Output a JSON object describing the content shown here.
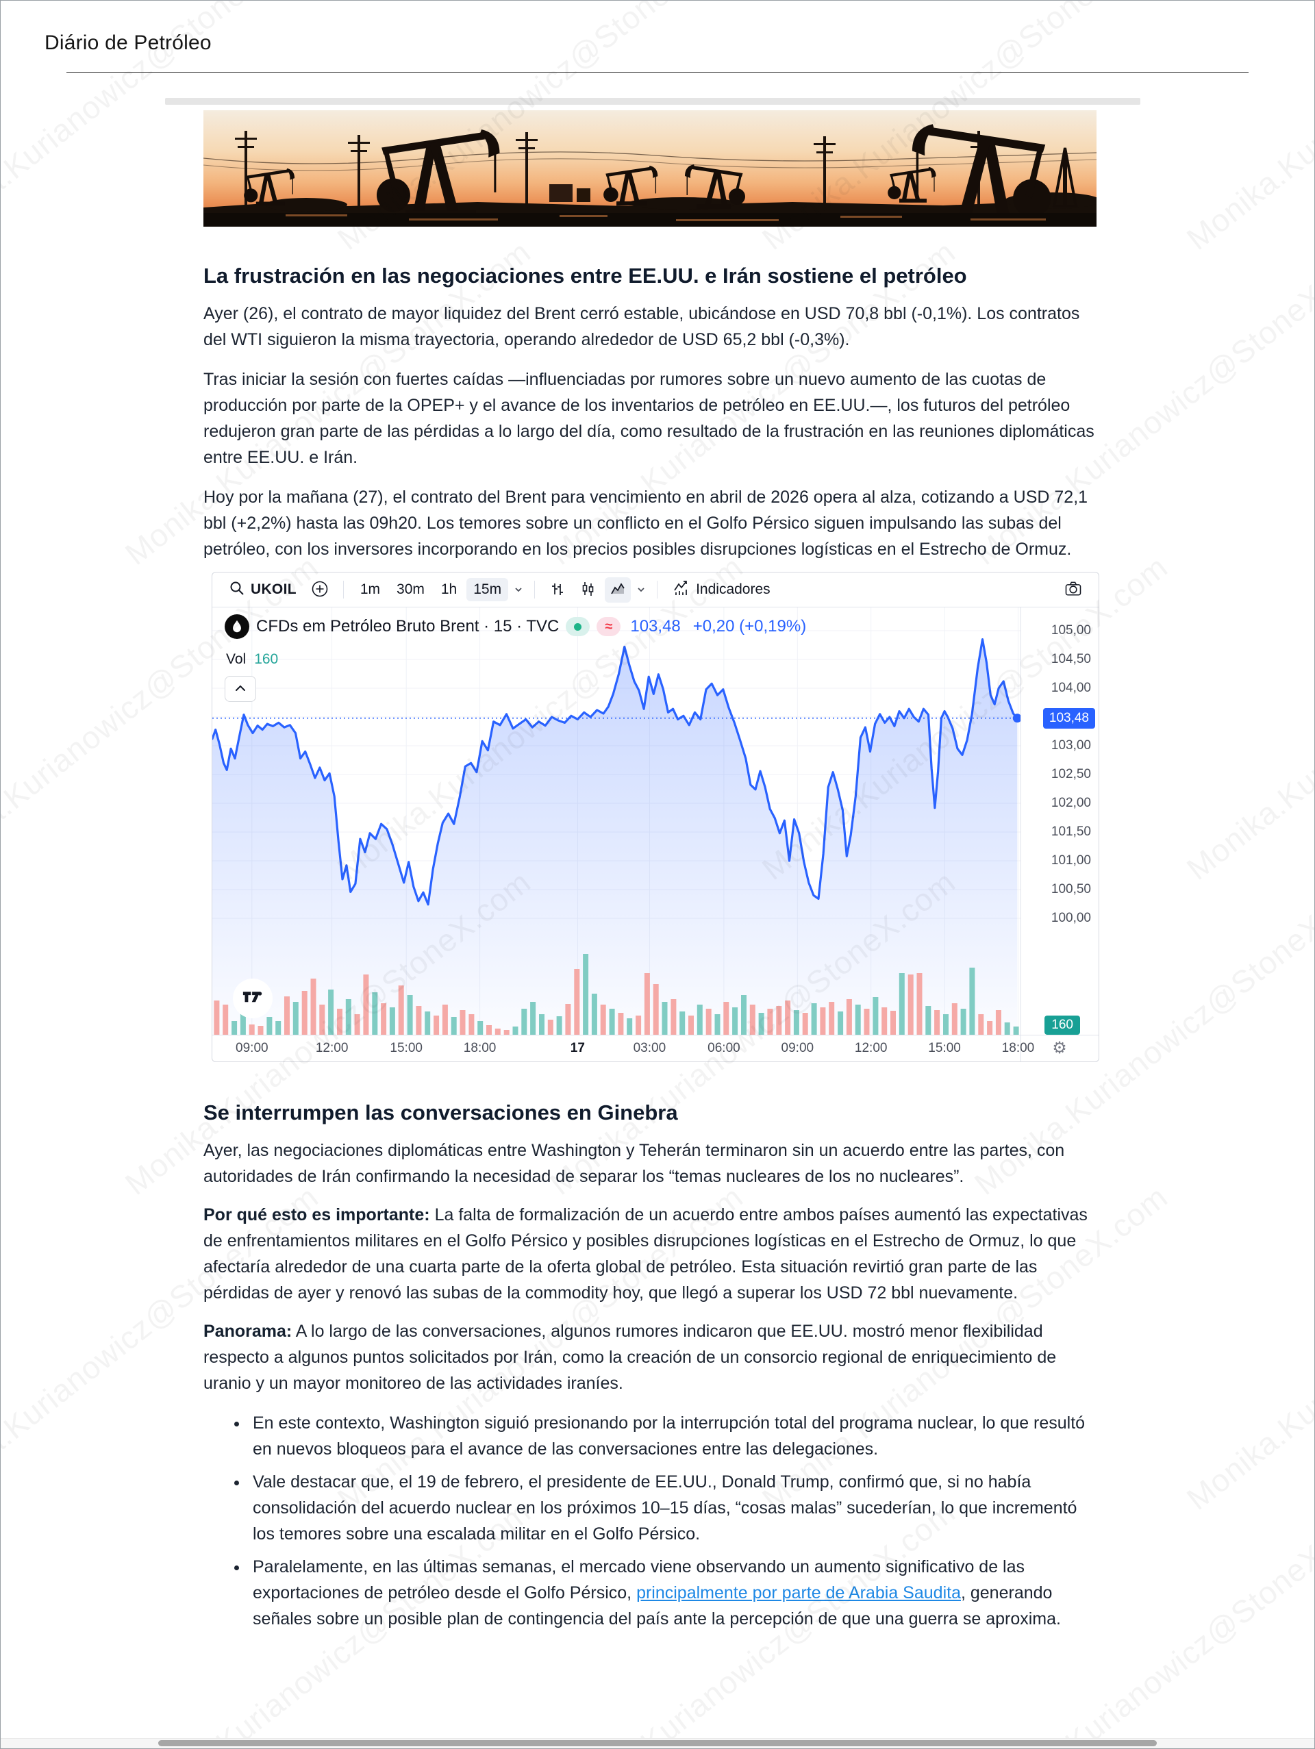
{
  "page": {
    "title": "Diário de Petróleo",
    "watermark": "Monika.Kurianowicz@StoneX.com"
  },
  "article": {
    "heading1": "La frustración en las negociaciones entre EE.UU. e Irán sostiene el petróleo",
    "p1": "Ayer (26), el contrato de mayor liquidez del Brent cerró estable, ubicándose en USD 70,8 bbl (-0,1%). Los contratos del WTI siguieron la misma trayectoria, operando alrededor de USD 65,2 bbl (-0,3%).",
    "p2": "Tras iniciar la sesión con fuertes caídas —influenciadas por rumores sobre un nuevo aumento de las cuotas de producción por parte de la OPEP+ y el avance de los inventarios de petróleo en EE.UU.—, los futuros del petróleo redujeron gran parte de las pérdidas a lo largo del día, como resultado de la frustración en las reuniones diplomáticas entre EE.UU. e Irán.",
    "p3": "Hoy por la mañana (27), el contrato del Brent para vencimiento en abril de 2026 opera al alza, cotizando a USD 72,1 bbl (+2,2%) hasta las 09h20. Los temores sobre un conflicto en el Golfo Pérsico siguen impulsando las subas del petróleo, con los inversores incorporando en los precios posibles disrupciones logísticas en el Estrecho de Ormuz.",
    "heading2": "Se interrumpen las conversaciones en Ginebra",
    "p4": "Ayer, las negociaciones diplomáticas entre Washington y Teherán terminaron sin un acuerdo entre las partes, con autoridades de Irán confirmando la necesidad de separar los “temas nucleares de los no nucleares”.",
    "why_label": "Por qué esto es importante:",
    "why_text": " La falta de formalización de un acuerdo entre ambos países aumentó las expectativas de enfrentamientos militares en el Golfo Pérsico y posibles disrupciones logísticas en el Estrecho de Ormuz, lo que afectaría alrededor de una cuarta parte de la oferta global de petróleo. Esta situación revirtió gran parte de las pérdidas de ayer y renovó las subas de la commodity hoy, que llegó a superar los USD 72 bbl nuevamente.",
    "panorama_label": "Panorama:",
    "panorama_text": " A lo largo de las conversaciones, algunos rumores indicaron que EE.UU. mostró menor flexibilidad respecto a algunos puntos solicitados por Irán, como la creación de un consorcio regional de enriquecimiento de uranio y un mayor monitoreo de las actividades iraníes.",
    "bullet1": "En este contexto, Washington siguió presionando por la interrupción total del programa nuclear, lo que resultó en nuevos bloqueos para el avance de las conversaciones entre las delegaciones.",
    "bullet2": "Vale destacar que, el 19 de febrero, el presidente de EE.UU., Donald Trump, confirmó que, si no había consolidación del acuerdo nuclear en los próximos 10–15 días, “cosas malas” sucederían, lo que incrementó los temores sobre una escalada militar en el Golfo Pérsico.",
    "bullet3_pre": "Paralelamente, en las últimas semanas, el mercado viene observando un aumento significativo de las exportaciones de petróleo desde el Golfo Pérsico, ",
    "bullet3_link": "principalmente por parte de Arabia Saudita",
    "bullet3_post": ", generando señales sobre un posible plan de contingencia del país ante la percepción de que una guerra se aproxima."
  },
  "chart": {
    "toolbar": {
      "symbol": "UKOIL",
      "intervals": [
        "1m",
        "30m",
        "1h",
        "15m"
      ],
      "selected_interval": "15m",
      "indicators_label": "Indicadores"
    },
    "legend": {
      "title": "CFDs em Petróleo Bruto Brent · 15 · TVC",
      "price": "103,48",
      "change": "+0,20 (+0,19%)",
      "vol_label": "Vol",
      "vol_value": "160"
    }
  },
  "colors": {
    "accent_blue": "#2962ff",
    "teal": "#26a69a",
    "vol_up": "#80ccc3",
    "vol_down": "#f5a9a6",
    "link_blue": "#1e88e5",
    "badge_green": "#1db488",
    "badge_red": "#f23645",
    "price_badge_bg": "#2962ff",
    "vol_badge_bg": "#18a095"
  },
  "chart_data": {
    "type": "area",
    "title": "CFDs em Petróleo Bruto Brent · 15 · TVC",
    "symbol": "UKOIL",
    "interval": "15",
    "exchange": "TVC",
    "last_price": "103,48",
    "change": "+0,20",
    "change_pct": "(+0,19%)",
    "last_volume": "160",
    "price_line_value": 103.48,
    "ylim": [
      99.4,
      105.4
    ],
    "grid": true,
    "legend_position": "top-left",
    "y_ticks": [
      {
        "value": 105.0,
        "label": "105,00"
      },
      {
        "value": 104.5,
        "label": "104,50"
      },
      {
        "value": 104.0,
        "label": "104,00"
      },
      {
        "value": 103.0,
        "label": "103,00"
      },
      {
        "value": 102.5,
        "label": "102,50"
      },
      {
        "value": 102.0,
        "label": "102,00"
      },
      {
        "value": 101.5,
        "label": "101,50"
      },
      {
        "value": 101.0,
        "label": "101,00"
      },
      {
        "value": 100.5,
        "label": "100,50"
      },
      {
        "value": 100.0,
        "label": "100,00"
      }
    ],
    "x_ticks": [
      {
        "label": "09:00",
        "f": 0.049
      },
      {
        "label": "12:00",
        "f": 0.148
      },
      {
        "label": "15:00",
        "f": 0.24
      },
      {
        "label": "18:00",
        "f": 0.331
      },
      {
        "label": "17",
        "f": 0.452,
        "bold": true
      },
      {
        "label": "03:00",
        "f": 0.541
      },
      {
        "label": "06:00",
        "f": 0.633
      },
      {
        "label": "09:00",
        "f": 0.724
      },
      {
        "label": "12:00",
        "f": 0.815
      },
      {
        "label": "15:00",
        "f": 0.906
      },
      {
        "label": "18:00",
        "f": 0.997
      }
    ],
    "line": [
      [
        0.0,
        103.12
      ],
      [
        0.004,
        103.28
      ],
      [
        0.009,
        103.02
      ],
      [
        0.014,
        102.7
      ],
      [
        0.018,
        102.58
      ],
      [
        0.023,
        102.95
      ],
      [
        0.028,
        102.78
      ],
      [
        0.034,
        103.2
      ],
      [
        0.039,
        103.54
      ],
      [
        0.044,
        103.36
      ],
      [
        0.05,
        103.22
      ],
      [
        0.056,
        103.35
      ],
      [
        0.062,
        103.28
      ],
      [
        0.068,
        103.38
      ],
      [
        0.075,
        103.34
      ],
      [
        0.082,
        103.4
      ],
      [
        0.089,
        103.32
      ],
      [
        0.096,
        103.36
      ],
      [
        0.103,
        103.22
      ],
      [
        0.109,
        102.78
      ],
      [
        0.115,
        102.9
      ],
      [
        0.121,
        102.68
      ],
      [
        0.127,
        102.44
      ],
      [
        0.133,
        102.62
      ],
      [
        0.139,
        102.4
      ],
      [
        0.145,
        102.52
      ],
      [
        0.151,
        102.12
      ],
      [
        0.156,
        101.35
      ],
      [
        0.161,
        100.68
      ],
      [
        0.166,
        100.92
      ],
      [
        0.171,
        100.46
      ],
      [
        0.177,
        100.6
      ],
      [
        0.183,
        101.38
      ],
      [
        0.189,
        101.15
      ],
      [
        0.195,
        101.48
      ],
      [
        0.202,
        101.38
      ],
      [
        0.209,
        101.64
      ],
      [
        0.216,
        101.55
      ],
      [
        0.223,
        101.28
      ],
      [
        0.23,
        100.95
      ],
      [
        0.237,
        100.62
      ],
      [
        0.243,
        100.98
      ],
      [
        0.249,
        100.55
      ],
      [
        0.255,
        100.3
      ],
      [
        0.261,
        100.45
      ],
      [
        0.267,
        100.24
      ],
      [
        0.273,
        100.85
      ],
      [
        0.279,
        101.3
      ],
      [
        0.285,
        101.66
      ],
      [
        0.292,
        101.82
      ],
      [
        0.299,
        101.64
      ],
      [
        0.306,
        102.1
      ],
      [
        0.313,
        102.64
      ],
      [
        0.32,
        102.7
      ],
      [
        0.327,
        102.54
      ],
      [
        0.334,
        103.08
      ],
      [
        0.341,
        102.92
      ],
      [
        0.348,
        103.42
      ],
      [
        0.356,
        103.36
      ],
      [
        0.364,
        103.55
      ],
      [
        0.372,
        103.3
      ],
      [
        0.38,
        103.38
      ],
      [
        0.388,
        103.46
      ],
      [
        0.396,
        103.32
      ],
      [
        0.404,
        103.42
      ],
      [
        0.412,
        103.35
      ],
      [
        0.42,
        103.5
      ],
      [
        0.428,
        103.44
      ],
      [
        0.436,
        103.4
      ],
      [
        0.444,
        103.52
      ],
      [
        0.452,
        103.46
      ],
      [
        0.46,
        103.58
      ],
      [
        0.468,
        103.5
      ],
      [
        0.476,
        103.62
      ],
      [
        0.484,
        103.56
      ],
      [
        0.49,
        103.68
      ],
      [
        0.496,
        103.9
      ],
      [
        0.503,
        104.25
      ],
      [
        0.51,
        104.72
      ],
      [
        0.516,
        104.4
      ],
      [
        0.522,
        104.12
      ],
      [
        0.528,
        103.96
      ],
      [
        0.534,
        103.64
      ],
      [
        0.54,
        104.2
      ],
      [
        0.546,
        103.9
      ],
      [
        0.552,
        104.24
      ],
      [
        0.558,
        103.98
      ],
      [
        0.564,
        103.58
      ],
      [
        0.57,
        103.64
      ],
      [
        0.576,
        103.46
      ],
      [
        0.583,
        103.52
      ],
      [
        0.59,
        103.36
      ],
      [
        0.597,
        103.58
      ],
      [
        0.604,
        103.46
      ],
      [
        0.611,
        103.98
      ],
      [
        0.618,
        104.08
      ],
      [
        0.625,
        103.88
      ],
      [
        0.632,
        103.98
      ],
      [
        0.639,
        103.66
      ],
      [
        0.646,
        103.4
      ],
      [
        0.653,
        103.1
      ],
      [
        0.66,
        102.78
      ],
      [
        0.666,
        102.32
      ],
      [
        0.672,
        102.24
      ],
      [
        0.678,
        102.56
      ],
      [
        0.684,
        102.28
      ],
      [
        0.69,
        101.9
      ],
      [
        0.696,
        101.74
      ],
      [
        0.702,
        101.48
      ],
      [
        0.708,
        101.7
      ],
      [
        0.714,
        101.0
      ],
      [
        0.72,
        101.72
      ],
      [
        0.726,
        101.48
      ],
      [
        0.732,
        100.98
      ],
      [
        0.738,
        100.62
      ],
      [
        0.744,
        100.4
      ],
      [
        0.75,
        100.34
      ],
      [
        0.756,
        101.12
      ],
      [
        0.762,
        102.28
      ],
      [
        0.768,
        102.54
      ],
      [
        0.774,
        102.24
      ],
      [
        0.78,
        101.88
      ],
      [
        0.785,
        101.08
      ],
      [
        0.79,
        101.45
      ],
      [
        0.796,
        102.12
      ],
      [
        0.802,
        103.14
      ],
      [
        0.808,
        103.32
      ],
      [
        0.814,
        102.9
      ],
      [
        0.82,
        103.38
      ],
      [
        0.826,
        103.55
      ],
      [
        0.832,
        103.4
      ],
      [
        0.838,
        103.5
      ],
      [
        0.844,
        103.34
      ],
      [
        0.85,
        103.6
      ],
      [
        0.856,
        103.48
      ],
      [
        0.862,
        103.64
      ],
      [
        0.868,
        103.5
      ],
      [
        0.874,
        103.42
      ],
      [
        0.88,
        103.64
      ],
      [
        0.886,
        103.54
      ],
      [
        0.89,
        102.6
      ],
      [
        0.894,
        101.92
      ],
      [
        0.898,
        102.55
      ],
      [
        0.902,
        103.48
      ],
      [
        0.906,
        103.6
      ],
      [
        0.91,
        103.5
      ],
      [
        0.916,
        103.3
      ],
      [
        0.922,
        102.95
      ],
      [
        0.928,
        102.84
      ],
      [
        0.934,
        103.1
      ],
      [
        0.94,
        103.55
      ],
      [
        0.947,
        104.35
      ],
      [
        0.953,
        104.85
      ],
      [
        0.958,
        104.45
      ],
      [
        0.963,
        103.88
      ],
      [
        0.968,
        103.72
      ],
      [
        0.973,
        104.0
      ],
      [
        0.979,
        104.12
      ],
      [
        0.985,
        103.78
      ],
      [
        0.991,
        103.56
      ],
      [
        0.996,
        103.48
      ]
    ],
    "volume_bars": [
      [
        50,
        "d"
      ],
      [
        44,
        "d"
      ],
      [
        20,
        "u"
      ],
      [
        36,
        "u"
      ],
      [
        15,
        "d"
      ],
      [
        13,
        "d"
      ],
      [
        26,
        "u"
      ],
      [
        20,
        "u"
      ],
      [
        56,
        "d"
      ],
      [
        48,
        "u"
      ],
      [
        64,
        "d"
      ],
      [
        82,
        "d"
      ],
      [
        44,
        "d"
      ],
      [
        66,
        "u"
      ],
      [
        38,
        "d"
      ],
      [
        52,
        "u"
      ],
      [
        30,
        "d"
      ],
      [
        88,
        "d"
      ],
      [
        62,
        "u"
      ],
      [
        46,
        "d"
      ],
      [
        40,
        "u"
      ],
      [
        72,
        "d"
      ],
      [
        58,
        "u"
      ],
      [
        42,
        "d"
      ],
      [
        34,
        "u"
      ],
      [
        28,
        "d"
      ],
      [
        44,
        "d"
      ],
      [
        26,
        "u"
      ],
      [
        36,
        "d"
      ],
      [
        30,
        "d"
      ],
      [
        20,
        "u"
      ],
      [
        14,
        "d"
      ],
      [
        9,
        "d"
      ],
      [
        7,
        "d"
      ],
      [
        12,
        "u"
      ],
      [
        38,
        "u"
      ],
      [
        48,
        "u"
      ],
      [
        30,
        "u"
      ],
      [
        22,
        "d"
      ],
      [
        27,
        "u"
      ],
      [
        45,
        "d"
      ],
      [
        96,
        "d"
      ],
      [
        118,
        "u"
      ],
      [
        60,
        "u"
      ],
      [
        44,
        "d"
      ],
      [
        38,
        "u"
      ],
      [
        32,
        "d"
      ],
      [
        24,
        "u"
      ],
      [
        28,
        "d"
      ],
      [
        90,
        "d"
      ],
      [
        74,
        "d"
      ],
      [
        48,
        "u"
      ],
      [
        52,
        "d"
      ],
      [
        34,
        "u"
      ],
      [
        28,
        "d"
      ],
      [
        44,
        "u"
      ],
      [
        38,
        "d"
      ],
      [
        30,
        "u"
      ],
      [
        48,
        "d"
      ],
      [
        40,
        "u"
      ],
      [
        58,
        "u"
      ],
      [
        44,
        "d"
      ],
      [
        32,
        "u"
      ],
      [
        38,
        "d"
      ],
      [
        42,
        "d"
      ],
      [
        50,
        "d"
      ],
      [
        36,
        "u"
      ],
      [
        32,
        "d"
      ],
      [
        46,
        "u"
      ],
      [
        40,
        "d"
      ],
      [
        48,
        "d"
      ],
      [
        34,
        "u"
      ],
      [
        52,
        "d"
      ],
      [
        44,
        "u"
      ],
      [
        38,
        "d"
      ],
      [
        55,
        "u"
      ],
      [
        40,
        "d"
      ],
      [
        35,
        "d"
      ],
      [
        90,
        "u"
      ],
      [
        88,
        "d"
      ],
      [
        90,
        "d"
      ],
      [
        42,
        "u"
      ],
      [
        36,
        "d"
      ],
      [
        30,
        "u"
      ],
      [
        46,
        "d"
      ],
      [
        38,
        "u"
      ],
      [
        98,
        "u"
      ],
      [
        30,
        "d"
      ],
      [
        20,
        "d"
      ],
      [
        36,
        "d"
      ],
      [
        18,
        "u"
      ],
      [
        12,
        "u"
      ]
    ]
  }
}
